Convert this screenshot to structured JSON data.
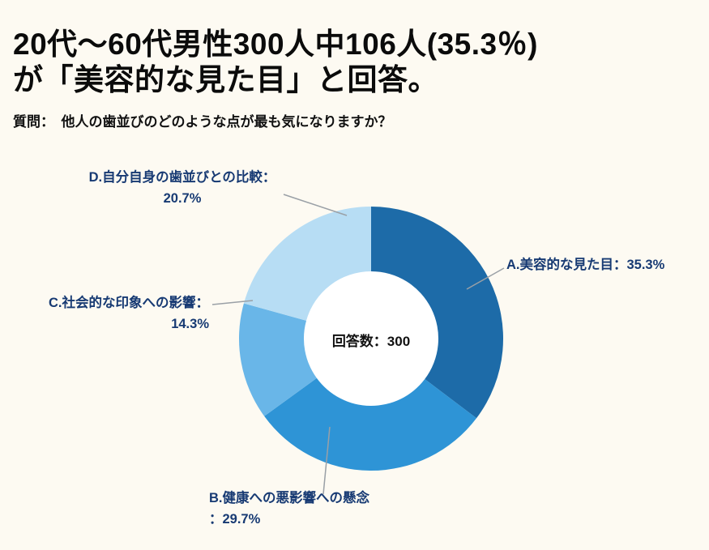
{
  "page": {
    "background": "#fdfaf2",
    "title_line1": "20代〜60代男性300人中106人(35.3％)",
    "title_line2": "が「美容的な見た目」と回答。",
    "question": "質問：　他人の歯並びのどのような点が最も気になりますか？"
  },
  "chart_data": {
    "type": "pie",
    "donut": true,
    "start_angle_deg": 0,
    "direction": "clockwise",
    "title": "他人の歯並びのどのような点が最も気になりますか？",
    "center_label": "回答数：300",
    "total_responses": 300,
    "respondents_note": "20代〜60代男性300人中106人(35.3％)が「美容的な見た目」と回答",
    "legend_position": "callout-labels",
    "segments": [
      {
        "label": "A.美容的な見た目：35.3%",
        "name": "美容的な見た目",
        "value": 35.3,
        "color": "#1d6ba8"
      },
      {
        "label": "B.健康への悪影響への懸念：29.7%",
        "name": "健康への悪影響への懸念",
        "value": 29.7,
        "color": "#2e94d6"
      },
      {
        "label": "C.社会的な印象への影響：14.3%",
        "name": "社会的な印象への影響",
        "value": 14.3,
        "color": "#69b6e8"
      },
      {
        "label": "D.自分自身の歯並びとの比較：20.7%",
        "name": "自分自身の歯並びとの比較",
        "value": 20.7,
        "color": "#b7ddf4"
      }
    ],
    "label_color": "#173a73",
    "hole_color": "#ffffff"
  },
  "labels": {
    "a_line1": "A.美容的な見た目：35.3%",
    "b_line1": "B.健康への悪影響への懸念",
    "b_line2": "：29.7%",
    "c_line1": "C.社会的な印象への影響：",
    "c_line2": "14.3%",
    "d_line1": "D.自分自身の歯並びとの比較：",
    "d_line2": "20.7%",
    "center": "回答数：300"
  }
}
